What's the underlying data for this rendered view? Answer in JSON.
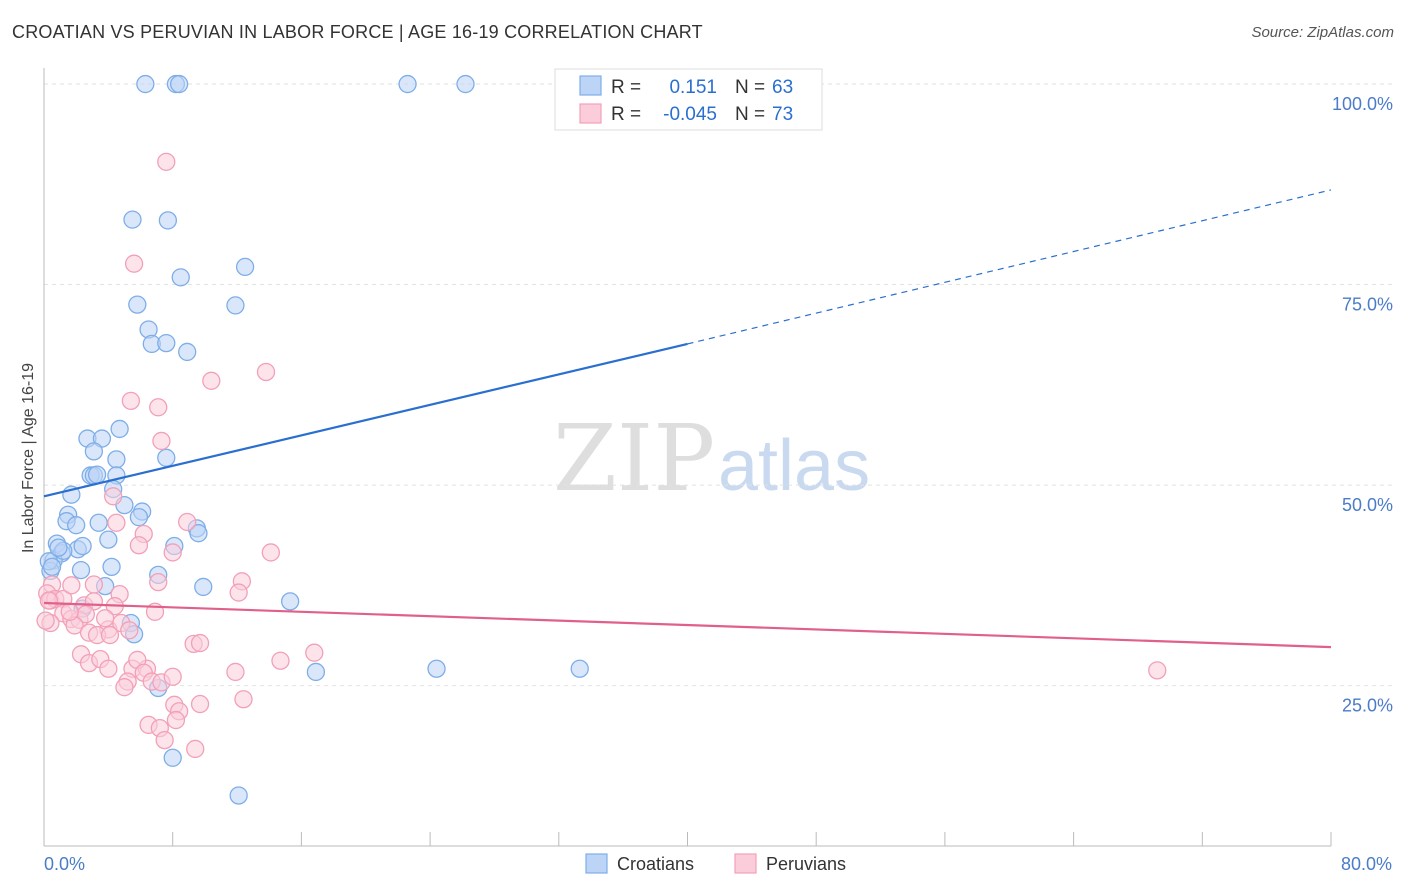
{
  "title": "CROATIAN VS PERUVIAN IN LABOR FORCE | AGE 16-19 CORRELATION CHART",
  "source": "Source: ZipAtlas.com",
  "watermark": {
    "zip": "ZIP",
    "atlas": "atlas"
  },
  "colors": {
    "blue": "#7eaee8",
    "blue_line": "#2a6fd0",
    "pink": "#f2a0b8",
    "pink_line": "#e0608a",
    "axis_text": "#4a7cc7"
  },
  "legend_top": [
    {
      "r_label": "R =",
      "r_value": "0.151",
      "n_label": "N =",
      "n_value": "63"
    },
    {
      "r_label": "R =",
      "r_value": "-0.045",
      "n_label": "N =",
      "n_value": "73"
    }
  ],
  "legend_bottom": [
    "Croatians",
    "Peruvians"
  ],
  "chart_data": {
    "type": "scatter",
    "title": "CROATIAN VS PERUVIAN IN LABOR FORCE | AGE 16-19 CORRELATION CHART",
    "xlabel": "",
    "ylabel": "In Labor Force | Age 16-19",
    "xlim": [
      0,
      80
    ],
    "ylim": [
      5,
      102
    ],
    "x_tick_labels": [
      "0.0%",
      "80.0%"
    ],
    "y_ticks": [
      25,
      50,
      75,
      100
    ],
    "y_tick_labels": [
      "25.0%",
      "50.0%",
      "75.0%",
      "100.0%"
    ],
    "grid": true,
    "legend_position": "top-center",
    "series": [
      {
        "name": "Croatians",
        "r": 0.151,
        "n": 63,
        "trend": {
          "x0": 0,
          "y0": 48.6,
          "x1": 40,
          "y1": 67.6,
          "x_dash_end": 80,
          "y_dash_end": 86.8
        },
        "points": [
          [
            6.3,
            100
          ],
          [
            8.2,
            100
          ],
          [
            8.4,
            100
          ],
          [
            22.6,
            100
          ],
          [
            26.2,
            100
          ],
          [
            5.5,
            83.1
          ],
          [
            7.7,
            83
          ],
          [
            8.5,
            75.9
          ],
          [
            12.5,
            77.2
          ],
          [
            5.8,
            72.5
          ],
          [
            11.9,
            72.4
          ],
          [
            6.5,
            69.4
          ],
          [
            6.7,
            67.6
          ],
          [
            7.6,
            67.7
          ],
          [
            8.9,
            66.6
          ],
          [
            2.7,
            55.8
          ],
          [
            3.6,
            55.8
          ],
          [
            4.7,
            57
          ],
          [
            4.5,
            53.2
          ],
          [
            7.6,
            53.4
          ],
          [
            3.1,
            54.2
          ],
          [
            2.9,
            51.2
          ],
          [
            3.1,
            51.2
          ],
          [
            4.5,
            51.2
          ],
          [
            1.7,
            48.8
          ],
          [
            4.3,
            49.5
          ],
          [
            1.5,
            46.3
          ],
          [
            5,
            47.5
          ],
          [
            6.1,
            46.7
          ],
          [
            5.9,
            46
          ],
          [
            1.4,
            45.5
          ],
          [
            2,
            45
          ],
          [
            3.4,
            45.3
          ],
          [
            9.5,
            44.6
          ],
          [
            9.6,
            44
          ],
          [
            0.8,
            42.7
          ],
          [
            1.1,
            41.5
          ],
          [
            2.1,
            42
          ],
          [
            2.4,
            42.4
          ],
          [
            4,
            43.2
          ],
          [
            8.1,
            42.4
          ],
          [
            0.6,
            40.6
          ],
          [
            0.4,
            39.3
          ],
          [
            2.3,
            39.4
          ],
          [
            4.2,
            39.8
          ],
          [
            7.1,
            38.8
          ],
          [
            3.8,
            37.4
          ],
          [
            9.9,
            37.3
          ],
          [
            15.3,
            35.5
          ],
          [
            2.4,
            34.6
          ],
          [
            5.4,
            32.8
          ],
          [
            5.6,
            31.4
          ],
          [
            16.9,
            26.7
          ],
          [
            24.4,
            27.1
          ],
          [
            33.3,
            27.1
          ],
          [
            7.1,
            24.7
          ],
          [
            8,
            16
          ],
          [
            12.1,
            11.3
          ],
          [
            0.3,
            40.5
          ],
          [
            0.5,
            39.8
          ],
          [
            1.2,
            41.8
          ],
          [
            3.3,
            51.3
          ],
          [
            0.9,
            42.2
          ]
        ]
      },
      {
        "name": "Peruvians",
        "r": -0.045,
        "n": 73,
        "trend": {
          "x0": 0,
          "y0": 35.3,
          "x1": 80,
          "y1": 29.8
        },
        "points": [
          [
            7.6,
            90.3
          ],
          [
            5.6,
            77.6
          ],
          [
            10.4,
            63
          ],
          [
            13.8,
            64.1
          ],
          [
            5.4,
            60.5
          ],
          [
            7.1,
            59.7
          ],
          [
            7.3,
            55.5
          ],
          [
            4.3,
            48.6
          ],
          [
            4.5,
            45.3
          ],
          [
            8.9,
            45.4
          ],
          [
            6.2,
            43.9
          ],
          [
            5.9,
            42.5
          ],
          [
            8,
            41.6
          ],
          [
            14.1,
            41.6
          ],
          [
            7.1,
            37.9
          ],
          [
            12.3,
            38
          ],
          [
            12.1,
            36.6
          ],
          [
            0.5,
            37.6
          ],
          [
            0.2,
            36.5
          ],
          [
            0.4,
            35.6
          ],
          [
            0.7,
            35.8
          ],
          [
            1.2,
            35.8
          ],
          [
            1.7,
            37.5
          ],
          [
            3.1,
            37.6
          ],
          [
            4.7,
            36.4
          ],
          [
            2.5,
            35
          ],
          [
            3.1,
            35.5
          ],
          [
            4.4,
            34.9
          ],
          [
            6.9,
            34.2
          ],
          [
            1.2,
            34
          ],
          [
            1.7,
            33.3
          ],
          [
            2.2,
            33.2
          ],
          [
            2.6,
            33.9
          ],
          [
            4,
            32
          ],
          [
            4.8,
            32.8
          ],
          [
            0.4,
            32.8
          ],
          [
            1.9,
            32.5
          ],
          [
            2.8,
            31.6
          ],
          [
            3.3,
            31.3
          ],
          [
            4.1,
            31.3
          ],
          [
            5.3,
            31.9
          ],
          [
            9.3,
            30.2
          ],
          [
            9.7,
            30.3
          ],
          [
            2.3,
            28.9
          ],
          [
            2.8,
            27.8
          ],
          [
            3.5,
            28.3
          ],
          [
            4,
            27.1
          ],
          [
            5.5,
            27.1
          ],
          [
            6.4,
            27.1
          ],
          [
            5.8,
            28.2
          ],
          [
            6.2,
            26.6
          ],
          [
            6.7,
            25.5
          ],
          [
            7.3,
            25.4
          ],
          [
            8,
            26.1
          ],
          [
            11.9,
            26.7
          ],
          [
            14.7,
            28.1
          ],
          [
            16.8,
            29.1
          ],
          [
            5.2,
            25.5
          ],
          [
            5,
            24.8
          ],
          [
            8.1,
            22.6
          ],
          [
            9.7,
            22.7
          ],
          [
            12.4,
            23.3
          ],
          [
            8.4,
            21.8
          ],
          [
            6.5,
            20.1
          ],
          [
            7.2,
            19.7
          ],
          [
            8.2,
            20.7
          ],
          [
            7.5,
            18.2
          ],
          [
            9.4,
            17.1
          ],
          [
            69.2,
            26.9
          ],
          [
            0.1,
            33.1
          ],
          [
            0.3,
            35.6
          ],
          [
            1.6,
            34.2
          ],
          [
            3.8,
            33.4
          ]
        ]
      }
    ]
  }
}
